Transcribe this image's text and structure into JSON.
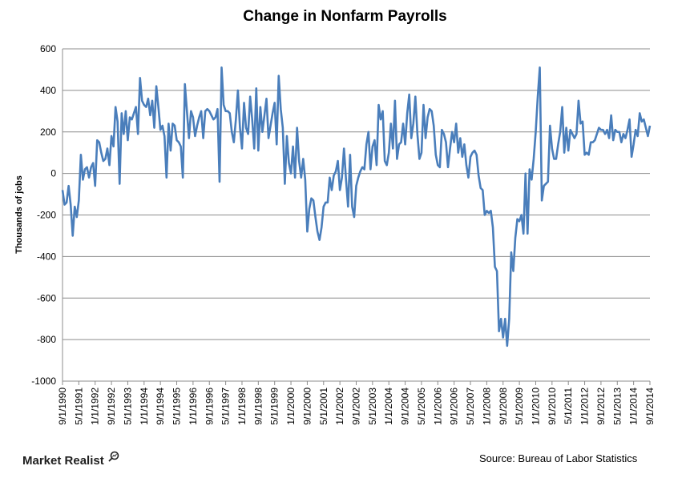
{
  "chart_data": {
    "type": "line",
    "title": "Change in Nonfarm Payrolls",
    "xlabel": "",
    "ylabel": "Thousands of jobs",
    "ylim": [
      -1000,
      600
    ],
    "yticks": [
      600,
      400,
      200,
      0,
      -200,
      -400,
      -600,
      -800,
      -1000
    ],
    "xticks": [
      "9/1/1990",
      "5/1/1991",
      "1/1/1992",
      "9/1/1992",
      "5/1/1993",
      "1/1/1994",
      "9/1/1994",
      "5/1/1995",
      "1/1/1996",
      "9/1/1996",
      "5/1/1997",
      "1/1/1998",
      "9/1/1998",
      "5/1/1999",
      "1/1/2000",
      "9/1/2000",
      "5/1/2001",
      "1/1/2002",
      "9/1/2002",
      "5/1/2003",
      "1/1/2004",
      "9/1/2004",
      "5/1/2005",
      "1/1/2006",
      "9/1/2006",
      "5/1/2007",
      "1/1/2008",
      "9/1/2008",
      "5/1/2009",
      "1/1/2010",
      "9/1/2010",
      "5/1/2011",
      "1/1/2012",
      "9/1/2012",
      "5/1/2013",
      "1/1/2014",
      "9/1/2014"
    ],
    "grid": true,
    "legend": "none",
    "series_color": "#4a7ebb",
    "series": [
      {
        "x_start": "9/1/1990",
        "x_end": "9/1/2014",
        "frequency": "monthly",
        "values": [
          -80,
          -150,
          -140,
          -60,
          -150,
          -300,
          -160,
          -210,
          -130,
          90,
          -30,
          20,
          30,
          -20,
          30,
          50,
          -60,
          160,
          150,
          100,
          60,
          70,
          120,
          40,
          180,
          130,
          320,
          250,
          -50,
          290,
          190,
          300,
          160,
          270,
          260,
          290,
          320,
          190,
          460,
          350,
          330,
          320,
          360,
          280,
          350,
          220,
          420,
          320,
          210,
          230,
          180,
          -20,
          240,
          110,
          240,
          230,
          160,
          150,
          130,
          -20,
          430,
          300,
          170,
          300,
          270,
          180,
          230,
          270,
          300,
          170,
          300,
          310,
          300,
          280,
          260,
          270,
          310,
          -40,
          510,
          330,
          300,
          300,
          290,
          200,
          150,
          260,
          400,
          220,
          120,
          340,
          220,
          190,
          370,
          260,
          120,
          410,
          110,
          320,
          200,
          280,
          360,
          170,
          230,
          290,
          340,
          140,
          470,
          310,
          220,
          -50,
          180,
          50,
          0,
          130,
          -20,
          220,
          60,
          -20,
          70,
          -30,
          -280,
          -170,
          -120,
          -130,
          -210,
          -280,
          -320,
          -260,
          -160,
          -140,
          -140,
          -20,
          -80,
          -10,
          10,
          60,
          -80,
          -20,
          120,
          -30,
          -160,
          90,
          -160,
          -210,
          -60,
          -20,
          10,
          30,
          20,
          140,
          200,
          20,
          130,
          160,
          40,
          330,
          260,
          300,
          60,
          40,
          100,
          240,
          120,
          350,
          70,
          140,
          150,
          240,
          140,
          290,
          380,
          170,
          240,
          370,
          190,
          70,
          100,
          330,
          170,
          270,
          310,
          300,
          230,
          90,
          40,
          30,
          210,
          190,
          150,
          30,
          120,
          200,
          150,
          240,
          100,
          170,
          80,
          140,
          40,
          -20,
          80,
          100,
          110,
          90,
          -10,
          -70,
          -80,
          -200,
          -180,
          -190,
          -180,
          -260,
          -450,
          -470,
          -760,
          -700,
          -790,
          -700,
          -830,
          -700,
          -380,
          -470,
          -310,
          -220,
          -230,
          -200,
          -290,
          0,
          -290,
          20,
          -30,
          70,
          200,
          370,
          510,
          -130,
          -60,
          -50,
          -40,
          230,
          120,
          70,
          70,
          140,
          200,
          320,
          100,
          220,
          110,
          210,
          190,
          170,
          190,
          350,
          240,
          250,
          90,
          100,
          90,
          150,
          150,
          160,
          190,
          220,
          210,
          210,
          190,
          210,
          170,
          280,
          160,
          210,
          200,
          200,
          150,
          190,
          170,
          210,
          260,
          80,
          140,
          210,
          180,
          290,
          250,
          260,
          220,
          180,
          230
        ]
      }
    ]
  },
  "footer": {
    "brand": "Market Realist",
    "source": "Source: Bureau of Labor Statistics"
  }
}
